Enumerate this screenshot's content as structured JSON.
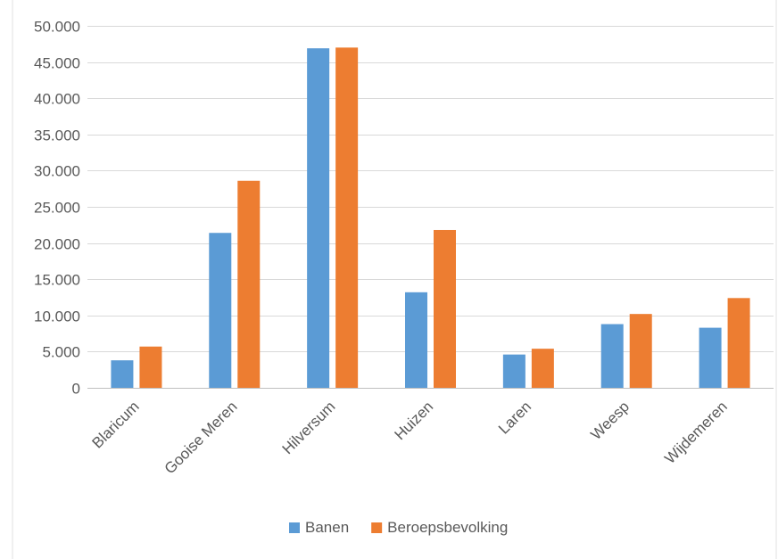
{
  "chart_data": {
    "type": "bar",
    "categories": [
      "Blaricum",
      "Gooise Meren",
      "Hilversum",
      "Huizen",
      "Laren",
      "Weesp",
      "Wijdemeren"
    ],
    "series": [
      {
        "name": "Banen",
        "values": [
          3800,
          21400,
          46900,
          13200,
          4600,
          8800,
          8300
        ],
        "color": "#5B9BD5"
      },
      {
        "name": "Beroepsbevolking",
        "values": [
          5700,
          28600,
          47000,
          21800,
          5400,
          10200,
          12400
        ],
        "color": "#ED7D31"
      }
    ],
    "y_ticks": [
      "0",
      "5.000",
      "10.000",
      "15.000",
      "20.000",
      "25.000",
      "30.000",
      "35.000",
      "40.000",
      "45.000",
      "50.000"
    ],
    "ylim": [
      0,
      50000
    ],
    "y_step": 5000,
    "grid": true,
    "legend_position": "bottom",
    "colors": {
      "gridline": "#D9D9D9",
      "axis": "#BFBFBF",
      "text": "#595959"
    }
  }
}
